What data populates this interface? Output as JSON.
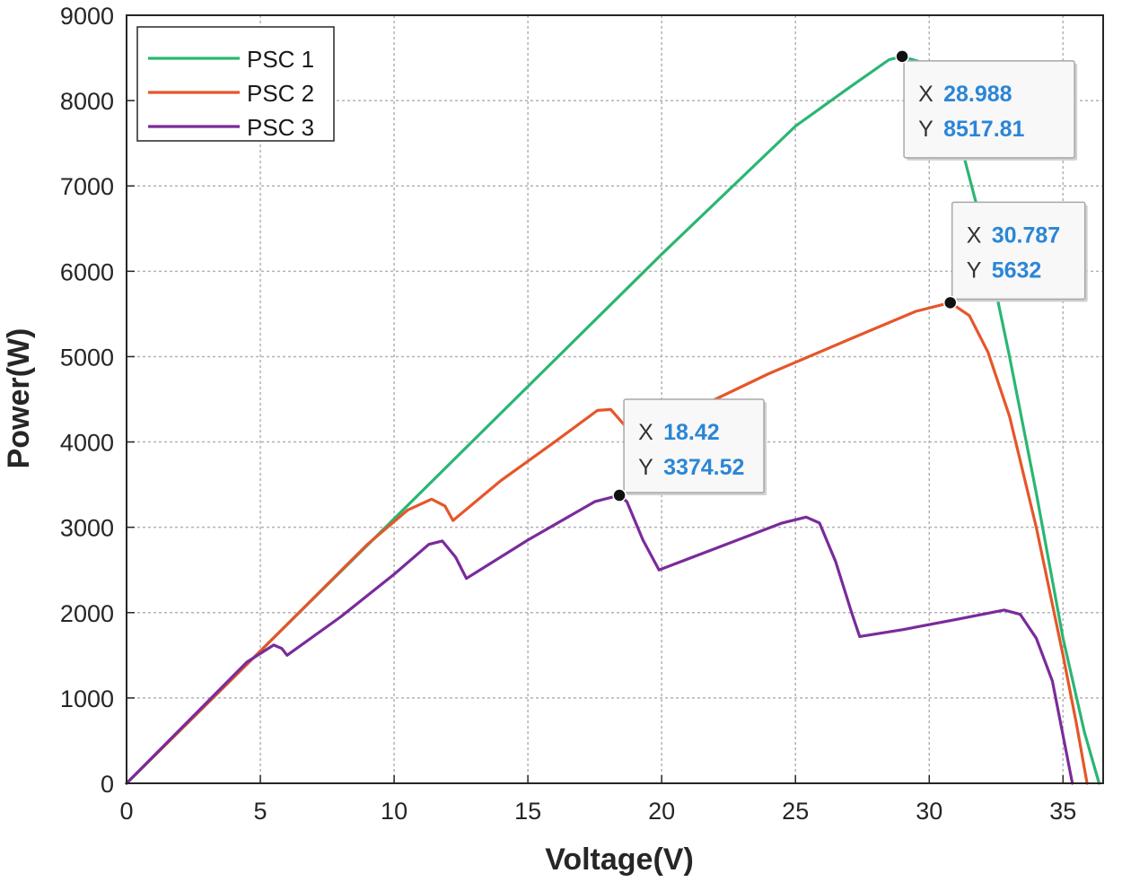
{
  "chart_data": {
    "type": "line",
    "title": "",
    "xlabel": "Voltage(V)",
    "ylabel": "Power(W)",
    "xlim": [
      0,
      36.5
    ],
    "ylim": [
      0,
      9000
    ],
    "xticks": [
      0,
      5,
      10,
      15,
      20,
      25,
      30,
      35
    ],
    "yticks": [
      0,
      1000,
      2000,
      3000,
      4000,
      5000,
      6000,
      7000,
      8000,
      9000
    ],
    "grid": true,
    "legend_position": "top-left",
    "series": [
      {
        "name": "PSC 1",
        "color": "#2ab673",
        "x": [
          0,
          5,
          10,
          15,
          20,
          25,
          27,
          28.5,
          28.988,
          29.6,
          30.2,
          31,
          32,
          33,
          34,
          35,
          35.8,
          36.35
        ],
        "y": [
          0,
          1550,
          3100,
          4650,
          6200,
          7700,
          8150,
          8480,
          8517.81,
          8460,
          8230,
          7700,
          6500,
          5000,
          3400,
          1700,
          600,
          0
        ]
      },
      {
        "name": "PSC 2",
        "color": "#e5562a",
        "x": [
          0,
          5,
          9,
          10.5,
          11.4,
          11.9,
          12.2,
          14,
          16,
          17.6,
          18.1,
          18.6,
          18.9,
          21,
          24,
          27,
          29.5,
          30.787,
          31.5,
          32.2,
          33,
          34,
          35,
          35.5,
          35.9
        ],
        "y": [
          0,
          1550,
          2800,
          3200,
          3330,
          3250,
          3080,
          3550,
          4000,
          4370,
          4380,
          4200,
          4030,
          4350,
          4800,
          5200,
          5530,
          5632,
          5480,
          5050,
          4300,
          3000,
          1500,
          700,
          0
        ]
      },
      {
        "name": "PSC 3",
        "color": "#7a2b9a",
        "x": [
          0,
          4.5,
          5.5,
          5.8,
          6.0,
          8,
          10,
          11.3,
          11.8,
          12.3,
          12.7,
          15,
          17.5,
          18.42,
          18.7,
          19.3,
          19.9,
          22,
          24.5,
          25.4,
          25.9,
          26.5,
          27.1,
          27.4,
          29,
          31,
          32.8,
          33.4,
          34,
          34.6,
          35.1,
          35.35
        ],
        "y": [
          0,
          1420,
          1620,
          1580,
          1500,
          1950,
          2450,
          2800,
          2840,
          2650,
          2400,
          2850,
          3300,
          3374.52,
          3300,
          2850,
          2500,
          2750,
          3050,
          3120,
          3050,
          2600,
          2000,
          1720,
          1800,
          1920,
          2030,
          1980,
          1700,
          1200,
          400,
          0
        ]
      }
    ],
    "datatips": [
      {
        "series": "PSC 1",
        "x_label": "X",
        "y_label": "Y",
        "x": 28.988,
        "y": 8517.81,
        "x_text": "28.988",
        "y_text": "8517.81"
      },
      {
        "series": "PSC 2",
        "x_label": "X",
        "y_label": "Y",
        "x": 30.787,
        "y": 5632,
        "x_text": "30.787",
        "y_text": "5632"
      },
      {
        "series": "PSC 3",
        "x_label": "X",
        "y_label": "Y",
        "x": 18.42,
        "y": 3374.52,
        "x_text": "18.42",
        "y_text": "3374.52"
      }
    ],
    "colors": {
      "grid": "#b3b3b3",
      "axis": "#262626",
      "datatip_value": "#2b86d6"
    }
  }
}
